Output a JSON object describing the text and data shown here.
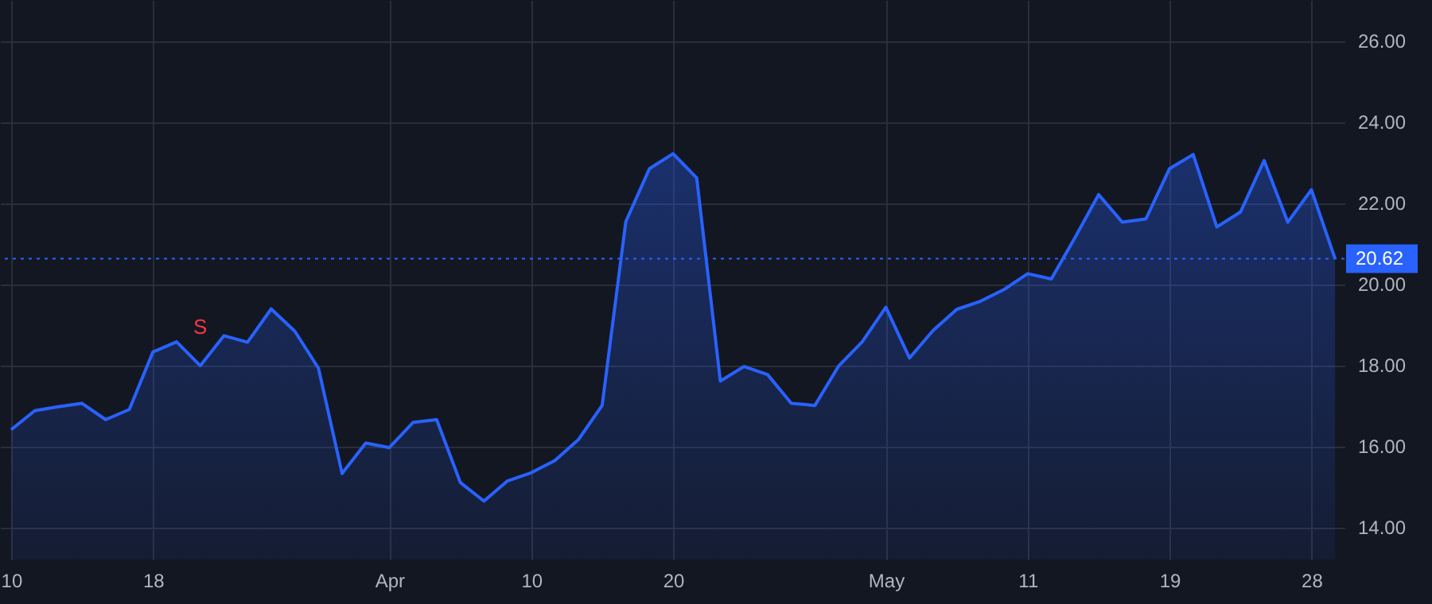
{
  "chart_data": {
    "type": "area",
    "categories": [
      "10",
      null,
      null,
      null,
      null,
      null,
      "18",
      null,
      null,
      null,
      null,
      null,
      null,
      null,
      null,
      null,
      "Apr",
      null,
      null,
      null,
      null,
      null,
      "10",
      null,
      null,
      null,
      null,
      null,
      "20",
      null,
      null,
      null,
      null,
      null,
      null,
      null,
      null,
      "May",
      null,
      null,
      null,
      null,
      null,
      "11",
      null,
      null,
      null,
      null,
      null,
      "19",
      null,
      null,
      null,
      null,
      null,
      "28",
      null
    ],
    "series": [
      {
        "color": "#2962ff",
        "values": [
          16.4,
          16.87,
          16.97,
          17.05,
          16.65,
          16.9,
          18.32,
          18.57,
          17.98,
          18.72,
          18.56,
          19.38,
          18.83,
          17.92,
          15.32,
          16.07,
          15.96,
          16.58,
          16.65,
          15.1,
          14.64,
          15.14,
          15.34,
          15.64,
          16.16,
          17.0,
          21.53,
          22.84,
          23.21,
          22.61,
          17.6,
          17.96,
          17.76,
          17.05,
          17.0,
          17.97,
          18.57,
          19.42,
          18.17,
          18.85,
          19.37,
          19.57,
          19.86,
          20.25,
          20.12,
          21.14,
          22.2,
          21.52,
          21.6,
          22.84,
          23.19,
          21.4,
          21.77,
          23.04,
          21.52,
          22.32,
          20.62
        ]
      }
    ],
    "ylim": [
      13.2,
      27.0
    ],
    "yticks": [
      {
        "value": 14,
        "label": "14.00"
      },
      {
        "value": 16,
        "label": "16.00"
      },
      {
        "value": 18,
        "label": "18.00"
      },
      {
        "value": 20,
        "label": "20.00"
      },
      {
        "value": 22,
        "label": "22.00"
      },
      {
        "value": 24,
        "label": "24.00"
      },
      {
        "value": 26,
        "label": "26.00"
      }
    ],
    "ref_lines": [
      {
        "axis": "y",
        "value": 20.62,
        "label": "20.62",
        "color": "#2962ff",
        "line_style": "dotted"
      }
    ],
    "annotations": [
      {
        "text": "S",
        "y": 17.98
      }
    ],
    "grid": true,
    "marker": "none",
    "line_style": "solid"
  }
}
